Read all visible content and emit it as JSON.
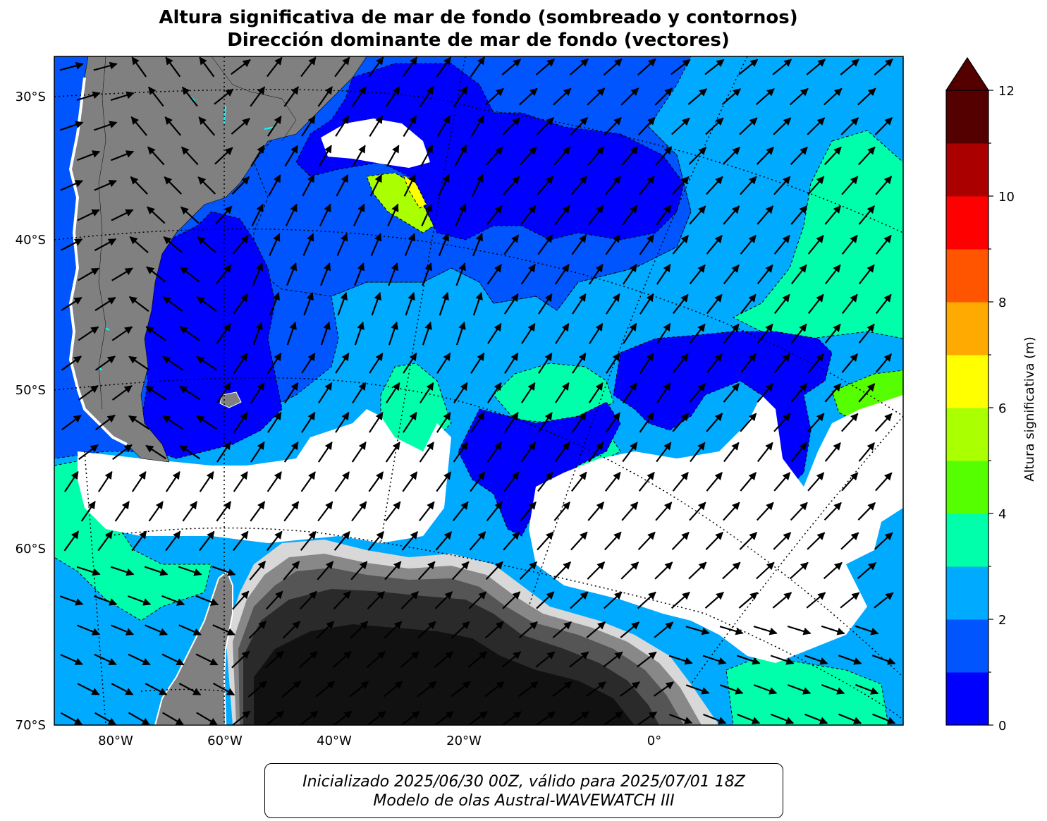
{
  "title": {
    "line1": "Altura significativa de mar de fondo (sombreado y contornos)",
    "line2": "Dirección dominante de mar de fondo (vectores)"
  },
  "axes": {
    "lat_labels": [
      "30°S",
      "40°S",
      "50°S",
      "60°S",
      "70°S"
    ],
    "lon_labels": [
      "80°W",
      "60°W",
      "40°W",
      "20°W",
      "0°"
    ]
  },
  "colorbar": {
    "label": "Altura significativa (m)",
    "tick_labels": [
      "0",
      "2",
      "4",
      "6",
      "8",
      "10",
      "12"
    ],
    "levels": [
      0,
      1,
      2,
      3,
      4,
      5,
      6,
      7,
      8,
      9,
      10,
      11,
      12
    ],
    "colors": [
      "#0000ff",
      "#0055ff",
      "#00aaff",
      "#00ffaa",
      "#55ff00",
      "#aaff00",
      "#ffff00",
      "#ffaa00",
      "#ff5500",
      "#ff0000",
      "#aa0000",
      "#550000"
    ],
    "extend": "max"
  },
  "colors": {
    "land": "#808080",
    "ice_dark": "#111111",
    "sea_ice": "#ffffff",
    "contour": "#000000",
    "vector": "#000000"
  },
  "caption": {
    "line1": "Inicializado 2025/06/30 00Z, válido para 2025/07/01 18Z",
    "line2": "Modelo de olas Austral-WAVEWATCH III"
  }
}
